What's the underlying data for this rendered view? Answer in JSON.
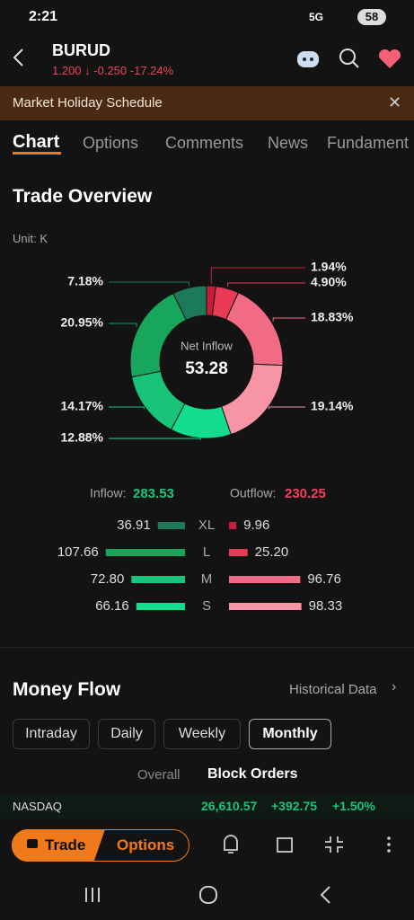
{
  "status_bar": {
    "time": "2:21",
    "network": "5G",
    "battery": "58"
  },
  "header": {
    "symbol": "BURUD",
    "price": "1.200",
    "change": "-0.250",
    "change_pct": "-17.24%"
  },
  "banner": "Market Holiday Schedule",
  "tabs": [
    "Chart",
    "Options",
    "Comments",
    "News",
    "Fundament"
  ],
  "trade_overview": {
    "title": "Trade Overview",
    "unit": "Unit: K",
    "donut": {
      "type": "pie",
      "center_label": "Net Inflow",
      "center_value": 53.28,
      "values": [
        1.94,
        4.9,
        18.83,
        19.14,
        12.88,
        14.17,
        20.95,
        7.18
      ],
      "value_labels": [
        "1.94%",
        "4.90%",
        "18.83%",
        "19.14%",
        "12.88%",
        "14.17%",
        "20.95%",
        "7.18%"
      ],
      "colors": [
        "#c41e3a",
        "#ea3a55",
        "#f26b84",
        "#f895a5",
        "#12dc8e",
        "#19c47a",
        "#17a65c",
        "#1c7a58"
      ]
    },
    "inflow_label": "Inflow:",
    "inflow": 283.53,
    "outflow_label": "Outflow:",
    "outflow": 230.25,
    "sizes": [
      "XL",
      "L",
      "M",
      "S"
    ],
    "inflow_values": [
      36.91,
      107.66,
      72.8,
      66.16
    ],
    "inflow_value_labels": [
      "36.91",
      "107.66",
      "72.80",
      "66.16"
    ],
    "outflow_values": [
      9.96,
      25.2,
      96.76,
      98.33
    ],
    "outflow_value_labels": [
      "9.96",
      "25.20",
      "96.76",
      "98.33"
    ],
    "inflow_colors": [
      "#1c7a58",
      "#17a65c",
      "#19c47a",
      "#12dc8e"
    ],
    "outflow_colors": [
      "#c41e3a",
      "#ea3a55",
      "#f26b84",
      "#f895a5"
    ]
  },
  "money_flow": {
    "title": "Money Flow",
    "link": "Historical Data",
    "periods": [
      "Intraday",
      "Daily",
      "Weekly",
      "Monthly"
    ],
    "subtabs": [
      "Overall",
      "Block Orders"
    ]
  },
  "ticker": {
    "name": "NASDAQ",
    "value": "26,610.57",
    "change": "+392.75",
    "change_pct": "+1.50%"
  },
  "bottom_bar": {
    "trade": "Trade",
    "options": "Options"
  }
}
